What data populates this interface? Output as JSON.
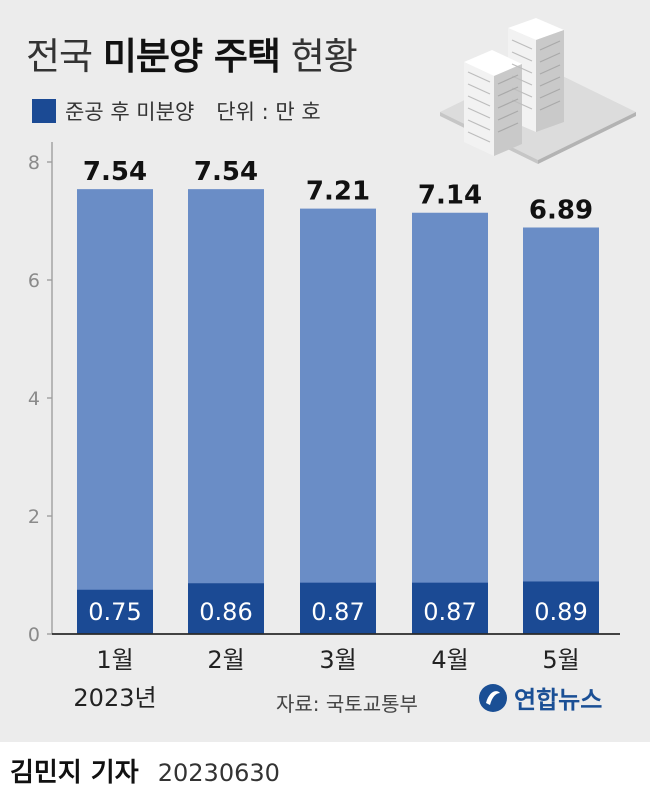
{
  "title": {
    "prefix": "전국",
    "bold": "미분양 주택",
    "suffix": "현황"
  },
  "legend": {
    "label": "준공 후 미분양",
    "unit_note": "단위 : 만 호"
  },
  "colors": {
    "total_bar": "#6a8dc6",
    "completed_bar": "#1b4a94",
    "background": "#ececec",
    "axis": "#9a9a9a"
  },
  "chart_data": {
    "type": "bar",
    "categories": [
      "1월",
      "2월",
      "3월",
      "4월",
      "5월"
    ],
    "x_sub_label": "2023년",
    "series": [
      {
        "name": "",
        "values": [
          7.54,
          7.54,
          7.21,
          7.14,
          6.89
        ]
      },
      {
        "name": "준공 후 미분양",
        "values": [
          0.75,
          0.86,
          0.87,
          0.87,
          0.89
        ]
      }
    ],
    "y_ticks": [
      0,
      2,
      4,
      6,
      8
    ],
    "ylim": [
      0,
      8
    ]
  },
  "source": "자료: 국토교통부",
  "logo": {
    "text": "연합뉴스",
    "icon": "yonhap-globe-icon"
  },
  "byline": {
    "reporter": "김민지 기자",
    "date": "20230630"
  }
}
